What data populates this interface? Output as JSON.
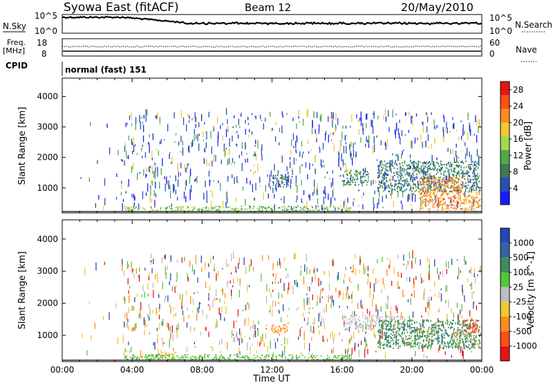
{
  "header": {
    "station": "Syowa East (fitACF)",
    "beam": "Beam 12",
    "date": "20/May/2010"
  },
  "nsky_panel": {
    "left_label": "N.Sky",
    "ticks_left": [
      "10^5",
      "10^0"
    ],
    "right_label": "N.Search",
    "ticks_right": [
      "10^5",
      "10^0"
    ]
  },
  "freq_panel": {
    "left_label_1": "Freq.",
    "left_label_2": "[MHz]",
    "left_ticks": [
      "18",
      "8"
    ],
    "right_label": "Nave",
    "right_ticks": [
      "60",
      "0"
    ]
  },
  "cpid_panel": {
    "left_label": "CPID",
    "mode_text": "normal (fast) 151"
  },
  "x_axis": {
    "ticks": [
      "00:00",
      "04:00",
      "08:00",
      "12:00",
      "16:00",
      "20:00",
      "00:00"
    ],
    "label": "Time UT"
  },
  "colors": {
    "power_scale": [
      "#1a1aff",
      "#2850b4",
      "#3c7c50",
      "#4faa4a",
      "#9fdc4a",
      "#f0c832",
      "#ff8c1e",
      "#ff5014",
      "#e61414"
    ],
    "velocity_scale": [
      "#2846b4",
      "#3264a0",
      "#3c8c5a",
      "#50c83c",
      "#bebebe",
      "#f0c832",
      "#ff8c1e",
      "#ff5014",
      "#e61414"
    ]
  },
  "chart_data": [
    {
      "type": "heatmap",
      "name": "power",
      "ylabel": "Slant Range [km]",
      "ylim": [
        180,
        4600
      ],
      "yticks": [
        "1000",
        "2000",
        "3000",
        "4000"
      ],
      "xlim_hours": [
        0,
        24
      ],
      "colorbar_label": "Power [dB]",
      "colorbar_ticks": [
        "4",
        "8",
        "12",
        "16",
        "20",
        "24",
        "28"
      ],
      "colorbar_range": [
        0,
        30
      ],
      "regions": [
        {
          "t": [
            18.0,
            23.9
          ],
          "r": [
            900,
            1900
          ],
          "level": 8
        },
        {
          "t": [
            20.4,
            22.9
          ],
          "r": [
            300,
            1400
          ],
          "level": 22
        },
        {
          "t": [
            12.0,
            12.9
          ],
          "r": [
            1050,
            1450
          ],
          "level": 8
        },
        {
          "t": [
            16.0,
            17.5
          ],
          "r": [
            1100,
            1600
          ],
          "level": 9
        },
        {
          "t": [
            22.9,
            23.9
          ],
          "r": [
            250,
            900
          ],
          "level": 20
        },
        {
          "t": [
            3.5,
            16.5
          ],
          "r": [
            250,
            420
          ],
          "level": 14
        }
      ]
    },
    {
      "type": "heatmap",
      "name": "velocity",
      "ylabel": "Slant Range [km]",
      "ylim": [
        180,
        4600
      ],
      "yticks": [
        "1000",
        "2000",
        "3000",
        "4000"
      ],
      "xlim_hours": [
        0,
        24
      ],
      "colorbar_label": "Velocity [m s^-1]",
      "colorbar_ticks": [
        "1000",
        "500",
        "100",
        "25",
        "-25",
        "-100",
        "-500",
        "-1000"
      ],
      "colorbar_range": [
        -1000,
        1000
      ],
      "regions": [
        {
          "t": [
            16.0,
            19.5
          ],
          "r": [
            1200,
            1650
          ],
          "level": 0
        },
        {
          "t": [
            18.0,
            23.9
          ],
          "r": [
            600,
            1500
          ],
          "level": 150
        },
        {
          "t": [
            22.9,
            23.9
          ],
          "r": [
            1100,
            1500
          ],
          "level": -700
        },
        {
          "t": [
            12.0,
            12.9
          ],
          "r": [
            1100,
            1400
          ],
          "level": -300
        },
        {
          "t": [
            5.5,
            6.5
          ],
          "r": [
            250,
            500
          ],
          "level": -60
        },
        {
          "t": [
            3.5,
            16.5
          ],
          "r": [
            250,
            420
          ],
          "level": 60
        }
      ]
    }
  ]
}
